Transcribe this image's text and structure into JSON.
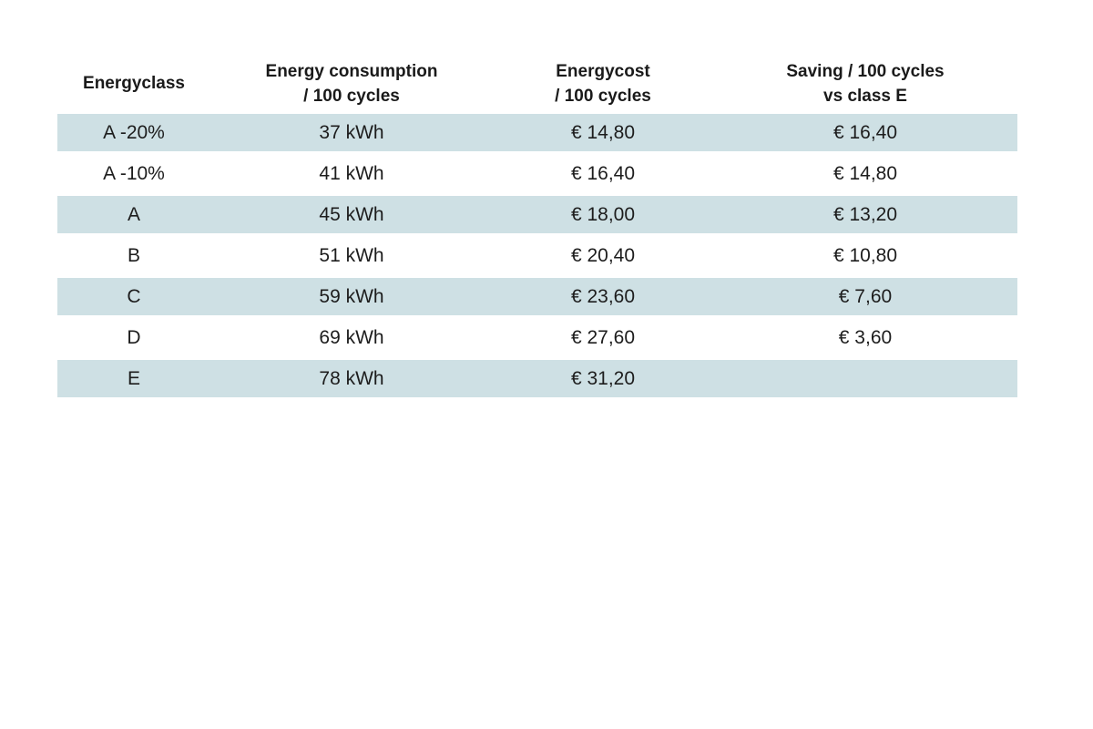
{
  "table": {
    "headers": [
      {
        "line1": "Energyclass"
      },
      {
        "line1": "Energy consumption",
        "line2": "/ 100 cycles"
      },
      {
        "line1": "Energycost",
        "line2": "/ 100 cycles"
      },
      {
        "line1": "Saving / 100 cycles",
        "line2": "vs class E"
      }
    ],
    "rows": [
      {
        "energyclass": "A -20%",
        "consumption": "37 kWh",
        "cost": "€ 14,80",
        "saving": "€ 16,40"
      },
      {
        "energyclass": "A -10%",
        "consumption": "41 kWh",
        "cost": "€ 16,40",
        "saving": "€ 14,80"
      },
      {
        "energyclass": "A",
        "consumption": "45 kWh",
        "cost": "€ 18,00",
        "saving": "€ 13,20"
      },
      {
        "energyclass": "B",
        "consumption": "51 kWh",
        "cost": "€ 20,40",
        "saving": "€ 10,80"
      },
      {
        "energyclass": "C",
        "consumption": "59 kWh",
        "cost": "€ 23,60",
        "saving": "€ 7,60"
      },
      {
        "energyclass": "D",
        "consumption": "69 kWh",
        "cost": "€ 27,60",
        "saving": "€ 3,60"
      },
      {
        "energyclass": "E",
        "consumption": "78 kWh",
        "cost": "€ 31,20",
        "saving": ""
      }
    ],
    "style": {
      "shaded_row_color": "#cee0e4",
      "background_color": "#ffffff",
      "text_color": "#1d1d1d"
    }
  },
  "chart_data": {
    "type": "table",
    "title": "",
    "columns": [
      "Energyclass",
      "Energy consumption / 100 cycles",
      "Energycost / 100 cycles",
      "Saving / 100 cycles vs class E"
    ],
    "rows": [
      [
        "A -20%",
        "37 kWh",
        "€ 14,80",
        "€ 16,40"
      ],
      [
        "A -10%",
        "41 kWh",
        "€ 16,40",
        "€ 14,80"
      ],
      [
        "A",
        "45 kWh",
        "€ 18,00",
        "€ 13,20"
      ],
      [
        "B",
        "51 kWh",
        "€ 20,40",
        "€ 10,80"
      ],
      [
        "C",
        "59 kWh",
        "€ 23,60",
        "€ 7,60"
      ],
      [
        "D",
        "69 kWh",
        "€ 27,60",
        "€ 3,60"
      ],
      [
        "E",
        "78 kWh",
        "€ 31,20",
        ""
      ]
    ],
    "numeric": {
      "energy_consumption_kwh": [
        37,
        41,
        45,
        51,
        59,
        69,
        78
      ],
      "energy_cost_eur": [
        14.8,
        16.4,
        18.0,
        20.4,
        23.6,
        27.6,
        31.2
      ],
      "saving_vs_class_e_eur": [
        16.4,
        14.8,
        13.2,
        10.8,
        7.6,
        3.6,
        null
      ]
    },
    "layout": {
      "row_shading": "alternating",
      "shaded_rows": [
        0,
        2,
        4,
        6
      ],
      "alignment": "center"
    }
  }
}
